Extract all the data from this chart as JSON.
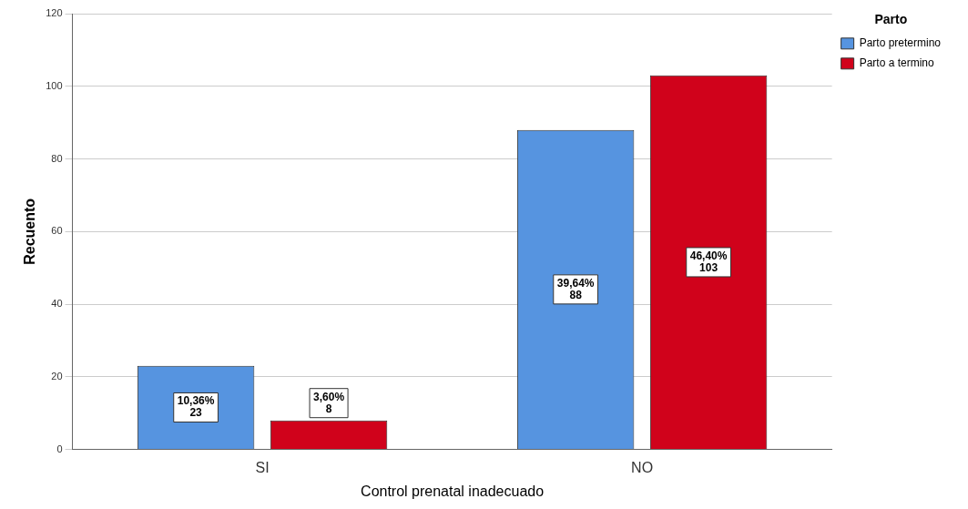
{
  "chart_data": {
    "type": "bar",
    "xlabel": "Control prenatal inadecuado",
    "ylabel": "Recuento",
    "legend_title": "Parto",
    "categories": [
      "SI",
      "NO"
    ],
    "series": [
      {
        "name": "Parto pretermino",
        "color": "#5694e0",
        "values": [
          23,
          88
        ],
        "value_labels": [
          "10,36%\n23",
          "39,64%\n88"
        ]
      },
      {
        "name": "Parto a termino",
        "color": "#d0021b",
        "values": [
          8,
          103
        ],
        "value_labels": [
          "3,60%\n8",
          "46,40%\n103"
        ]
      }
    ],
    "ylim": [
      0,
      120
    ],
    "yticks": [
      0,
      20,
      40,
      60,
      80,
      100,
      120
    ],
    "grid": "y",
    "legend": "top right"
  }
}
